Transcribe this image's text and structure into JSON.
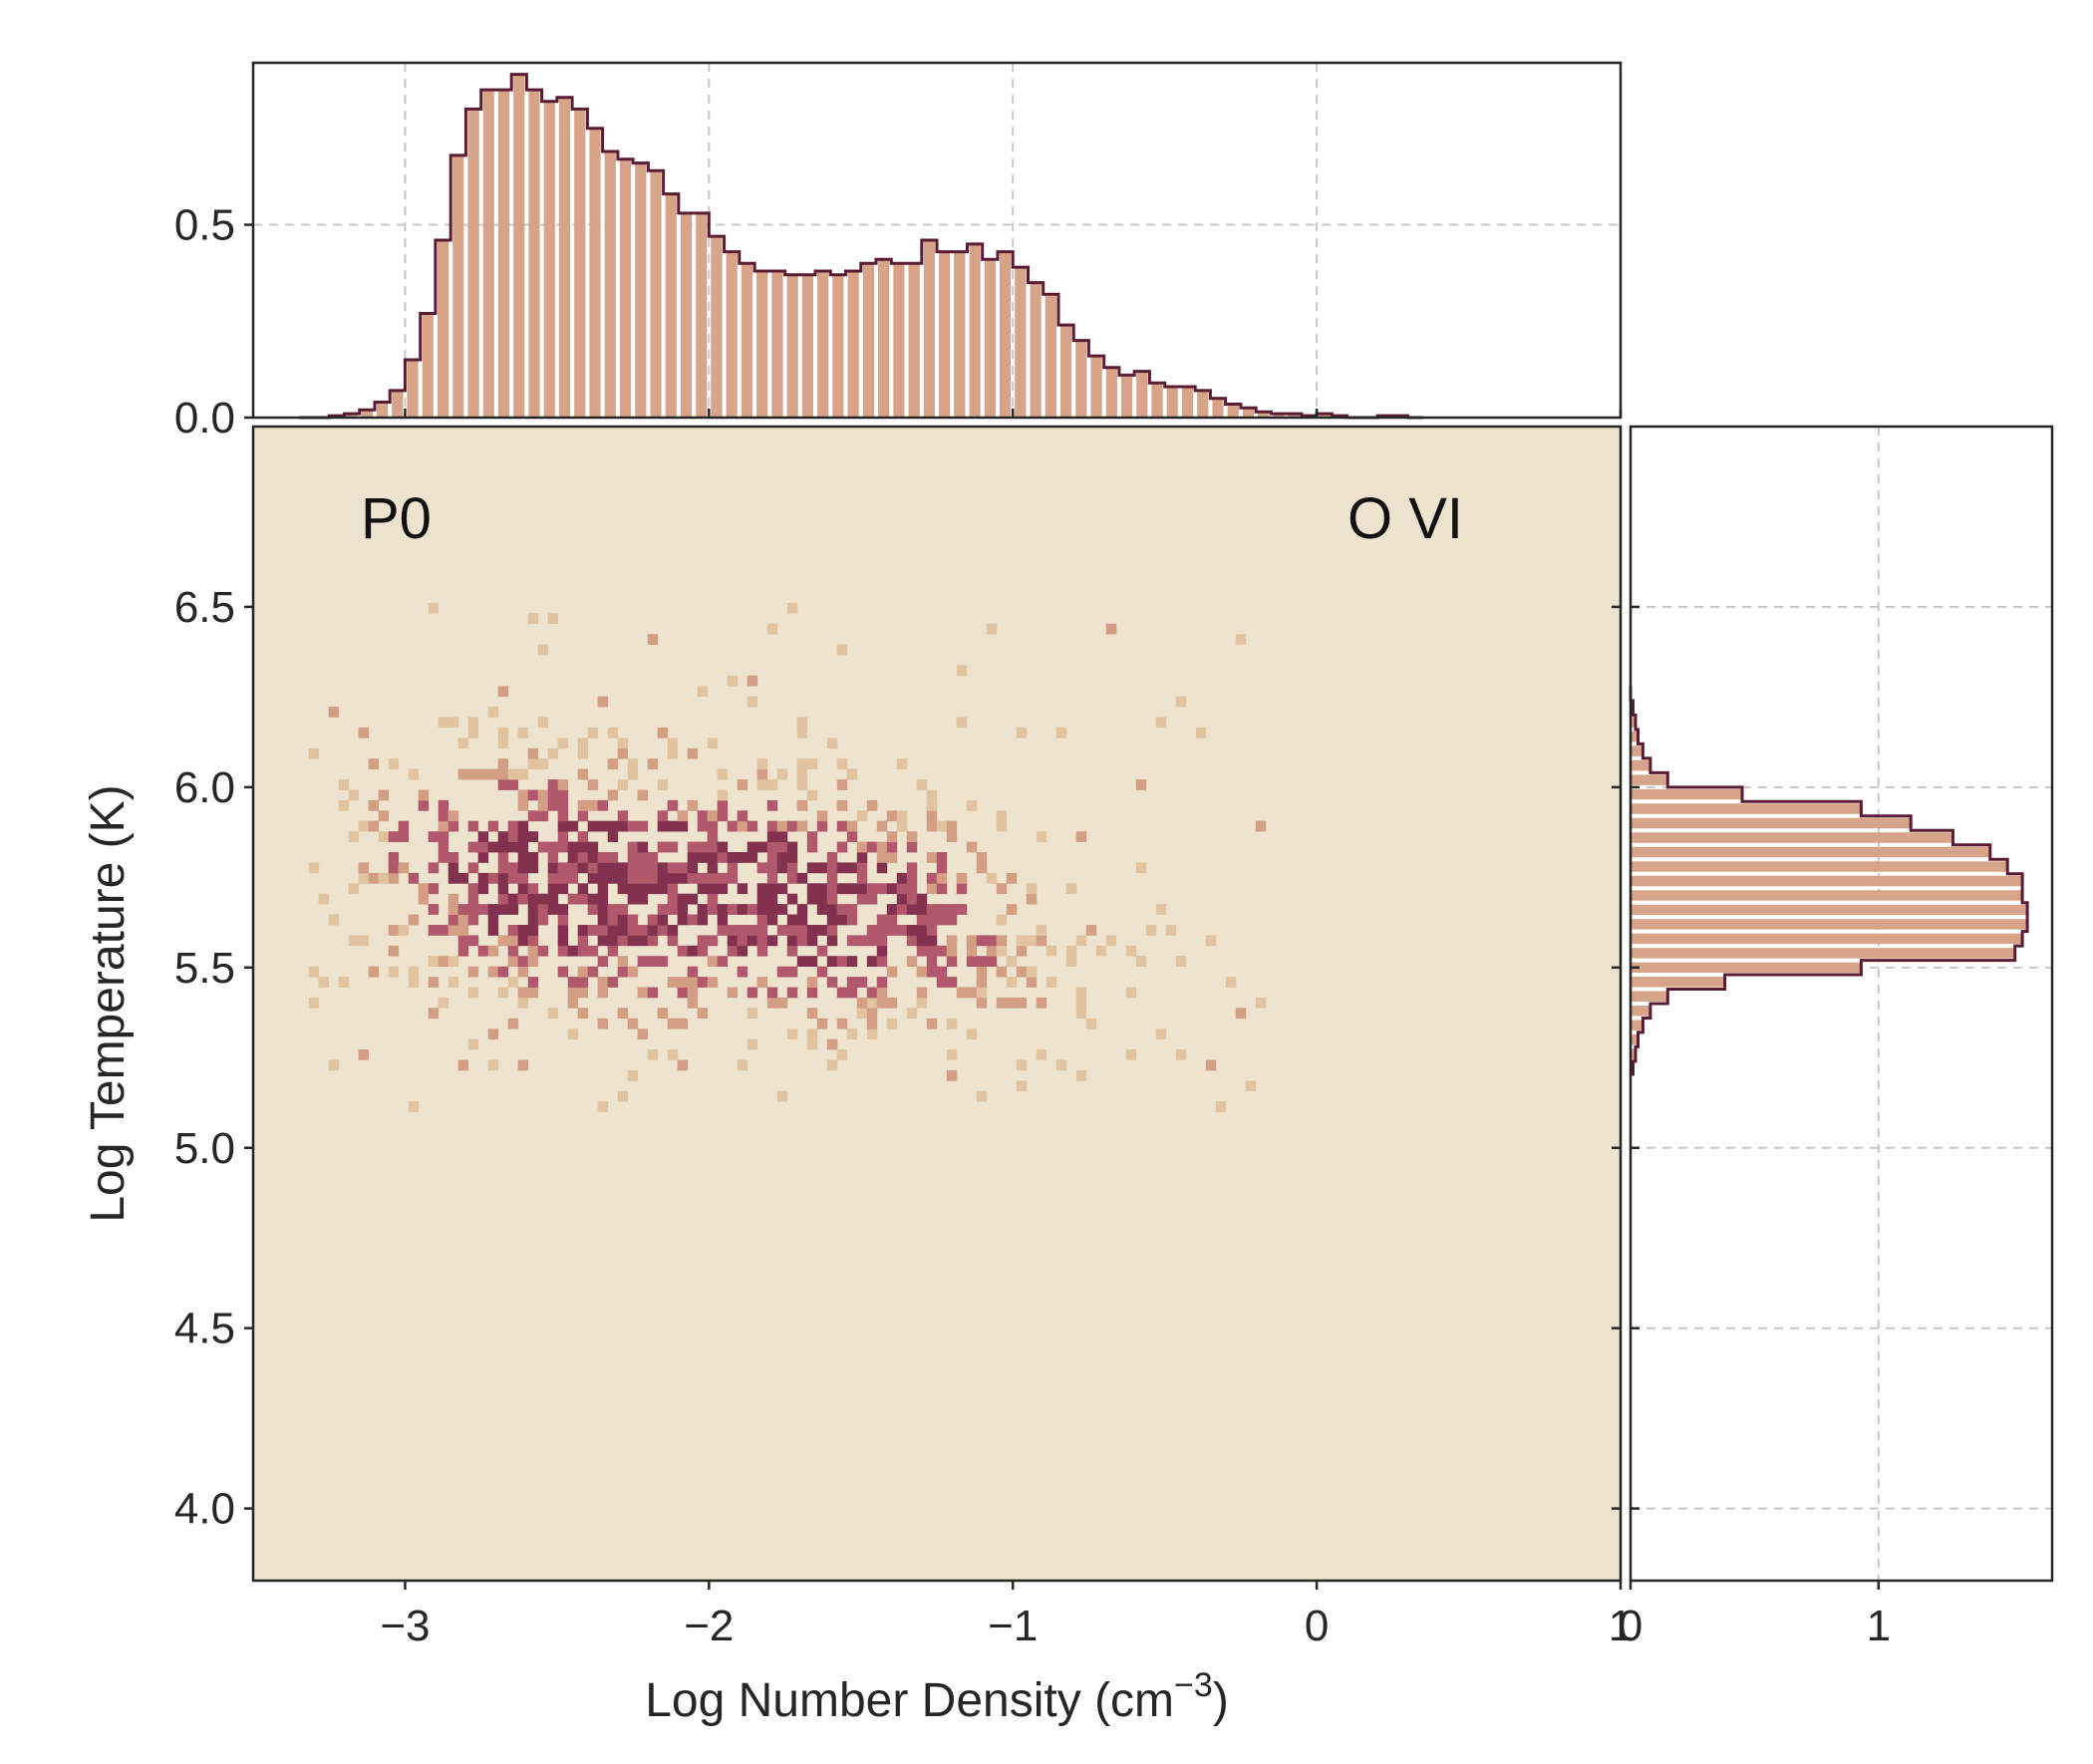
{
  "chart_data": [
    {
      "type": "heatmap",
      "role": "joint",
      "xlabel": "Log Number Density (cm",
      "xlabel_sup": "−3",
      "xlabel_suffix": ")",
      "ylabel": "Log Temperature (K)",
      "xlim": [
        -3.5,
        1.0
      ],
      "ylim": [
        3.8,
        7.0
      ],
      "xticks": [
        -3,
        -2,
        -1,
        0,
        1
      ],
      "xtick_labels": [
        "−3",
        "−2",
        "−1",
        "0",
        "1"
      ],
      "yticks": [
        4.0,
        4.5,
        5.0,
        5.5,
        6.0,
        6.5
      ],
      "ytick_labels": [
        "4.0",
        "4.5",
        "5.0",
        "5.5",
        "6.0",
        "6.5"
      ],
      "grid": false,
      "background_color": "#ede3cf",
      "colorscale": [
        "#e1c3a0",
        "#d39e84",
        "#b1586d",
        "#82324f",
        "#5a1b34"
      ],
      "annotations": [
        {
          "text": "P0",
          "position": "top-left"
        },
        {
          "text": "O VI",
          "position": "top-right"
        }
      ],
      "distribution": {
        "components": [
          {
            "weight": 0.5,
            "x_mean": -2.5,
            "y_mean": 5.72,
            "x_sd": 0.42,
            "y_sd": 0.21,
            "rho": -0.25
          },
          {
            "weight": 0.5,
            "x_mean": -1.6,
            "y_mean": 5.68,
            "x_sd": 0.42,
            "y_sd": 0.19,
            "rho": -0.35
          }
        ],
        "x_extent": [
          -3.35,
          -0.15
        ],
        "y_extent": [
          5.1,
          6.5
        ]
      }
    },
    {
      "type": "bar",
      "role": "top-marginal",
      "style": "step-histogram",
      "xlim": [
        -3.5,
        1.0
      ],
      "ylim": [
        0.0,
        0.92
      ],
      "yticks": [
        0.0,
        0.5
      ],
      "ytick_labels": [
        "0.0",
        "0.5"
      ],
      "grid": true,
      "bin_width": 0.05,
      "x_start": -3.35,
      "values": [
        0.0,
        0.0,
        0.005,
        0.01,
        0.02,
        0.04,
        0.07,
        0.15,
        0.27,
        0.46,
        0.68,
        0.8,
        0.85,
        0.85,
        0.89,
        0.85,
        0.82,
        0.83,
        0.8,
        0.75,
        0.69,
        0.67,
        0.66,
        0.64,
        0.58,
        0.53,
        0.53,
        0.47,
        0.43,
        0.4,
        0.38,
        0.38,
        0.37,
        0.37,
        0.38,
        0.37,
        0.38,
        0.4,
        0.41,
        0.4,
        0.4,
        0.46,
        0.43,
        0.43,
        0.45,
        0.41,
        0.43,
        0.39,
        0.35,
        0.32,
        0.24,
        0.2,
        0.16,
        0.13,
        0.11,
        0.12,
        0.09,
        0.08,
        0.08,
        0.07,
        0.05,
        0.035,
        0.025,
        0.015,
        0.01,
        0.01,
        0.005,
        0.01,
        0.005,
        0.0,
        0.0,
        0.005,
        0.005,
        0.0
      ],
      "fill_color": "#d8a489",
      "edge_color": "#5a1b34"
    },
    {
      "type": "bar",
      "role": "right-marginal",
      "style": "step-histogram",
      "orientation": "horizontal",
      "xlim": [
        0.0,
        1.7
      ],
      "xticks": [
        0,
        1
      ],
      "xtick_labels": [
        "0",
        "1"
      ],
      "grid": true,
      "bin_width": 0.04,
      "y_start": 5.2,
      "values": [
        0.01,
        0.02,
        0.03,
        0.05,
        0.08,
        0.15,
        0.38,
        0.93,
        1.55,
        1.58,
        1.6,
        1.6,
        1.58,
        1.58,
        1.52,
        1.45,
        1.3,
        1.13,
        0.93,
        0.45,
        0.15,
        0.08,
        0.05,
        0.03,
        0.02,
        0.01,
        0.0
      ],
      "fill_color": "#d8a489",
      "edge_color": "#5a1b34"
    }
  ]
}
